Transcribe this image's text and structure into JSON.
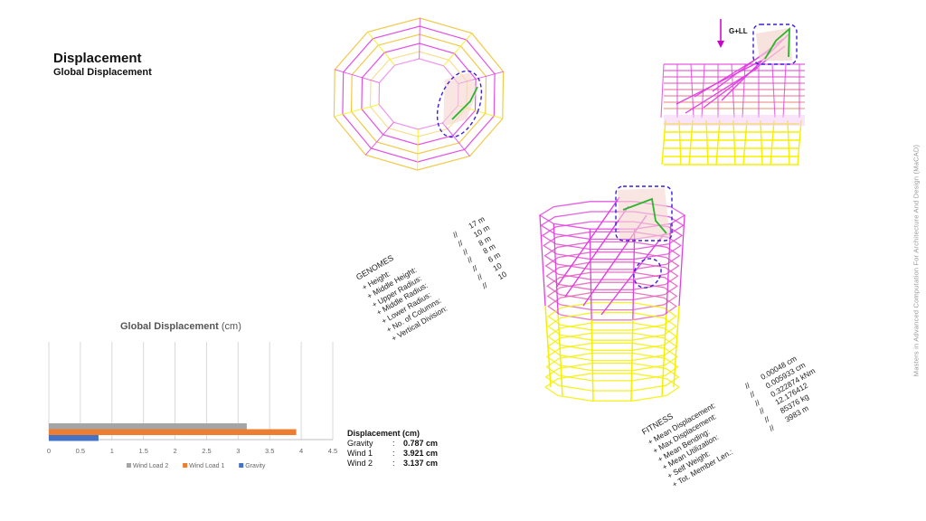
{
  "header": {
    "title": "Displacement",
    "subtitle": "Global Displacement"
  },
  "credit": "Masters in Advanced Computation For Architecture And Design (MaCAD)",
  "load_label": "G+LL",
  "genomes": {
    "heading": "GENOMES",
    "items": [
      {
        "label": "+ Height:",
        "sep": "//",
        "value": "17 m"
      },
      {
        "label": "+ Middle Height:",
        "sep": "//",
        "value": "10 m"
      },
      {
        "label": "+ Upper Radius:",
        "sep": "//",
        "value": "8 m"
      },
      {
        "label": "+ Middle Radius:",
        "sep": "//",
        "value": "8 m"
      },
      {
        "label": "+ Lower Radius:",
        "sep": "//",
        "value": "6 m"
      },
      {
        "label": "+ No. of Columns:",
        "sep": "//",
        "value": "10"
      },
      {
        "label": "+ Vertical Division:",
        "sep": "//",
        "value": "10"
      }
    ]
  },
  "fitness": {
    "heading": "FITNESS",
    "items": [
      {
        "label": "+ Mean Displacement:",
        "sep": "//",
        "value": "0.00048 cm"
      },
      {
        "label": "+ Max Displacement:",
        "sep": "//",
        "value": "0.005933 cm"
      },
      {
        "label": "+ Mean Bending:",
        "sep": "//",
        "value": "0.322874 kNm"
      },
      {
        "label": "+ Mean Utilization:",
        "sep": "//",
        "value": "12.176412"
      },
      {
        "label": "+ Self Weight:",
        "sep": "//",
        "value": "85376 kg"
      },
      {
        "label": "+ Tot. Member Len.:",
        "sep": "//",
        "value": "3983 m"
      }
    ]
  },
  "displacement_table": {
    "heading": "Displacement (cm)",
    "rows": [
      {
        "name": "Gravity",
        "sep": ":",
        "value": "0.787 cm"
      },
      {
        "name": "Wind 1",
        "sep": ":",
        "value": "3.921 cm"
      },
      {
        "name": "Wind 2",
        "sep": ":",
        "value": "3.137 cm"
      }
    ]
  },
  "chart_data": {
    "type": "bar",
    "orientation": "horizontal",
    "title": "Global Displacement",
    "title_unit": "(cm)",
    "x_ticks": [
      "0",
      "0.5",
      "1",
      "1.5",
      "2",
      "2.5",
      "3",
      "3.5",
      "4",
      "4.5"
    ],
    "xlim": [
      0,
      4.5
    ],
    "grid": true,
    "legend_position": "bottom",
    "series": [
      {
        "name": "Wind Load 2",
        "value": 3.137,
        "color": "#a5a5a5"
      },
      {
        "name": "Wind Load 1",
        "value": 3.921,
        "color": "#ed7d31"
      },
      {
        "name": "Gravity",
        "value": 0.787,
        "color": "#4472c4"
      }
    ]
  },
  "colors": {
    "magenta": "#e040e0",
    "yellow": "#f5f000",
    "green": "#2bb52b",
    "highlight": "#3b1fd6"
  }
}
